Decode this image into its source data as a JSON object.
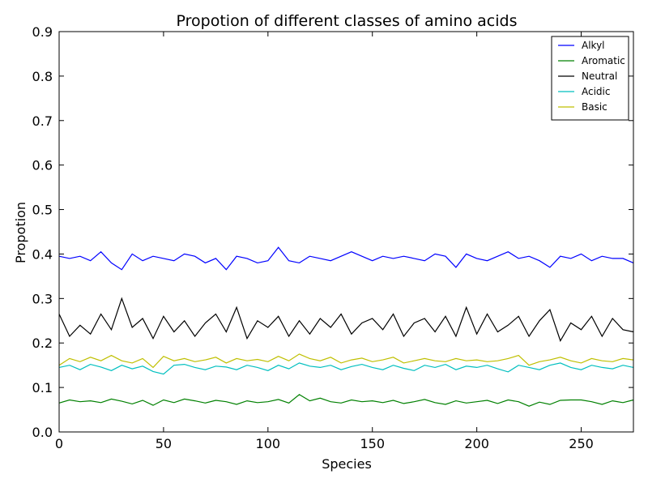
{
  "chart_data": {
    "type": "line",
    "title": "Propotion of different classes of amino acids",
    "xlabel": "Species",
    "ylabel": "Propotion",
    "xlim": [
      0,
      275
    ],
    "ylim": [
      0.0,
      0.9
    ],
    "x_ticks": [
      {
        "value": 0,
        "label": "0"
      },
      {
        "value": 50,
        "label": "50"
      },
      {
        "value": 100,
        "label": "100"
      },
      {
        "value": 150,
        "label": "150"
      },
      {
        "value": 200,
        "label": "200"
      },
      {
        "value": 250,
        "label": "250"
      }
    ],
    "y_ticks": [
      {
        "value": 0.0,
        "label": "0.0"
      },
      {
        "value": 0.1,
        "label": "0.1"
      },
      {
        "value": 0.2,
        "label": "0.2"
      },
      {
        "value": 0.3,
        "label": "0.3"
      },
      {
        "value": 0.4,
        "label": "0.4"
      },
      {
        "value": 0.5,
        "label": "0.5"
      },
      {
        "value": 0.6,
        "label": "0.6"
      },
      {
        "value": 0.7,
        "label": "0.7"
      },
      {
        "value": 0.8,
        "label": "0.8"
      },
      {
        "value": 0.9,
        "label": "0.9"
      }
    ],
    "grid": false,
    "legend_position": "top-right",
    "series": [
      {
        "name": "Alkyl",
        "color": "#0000ff",
        "x": [
          0,
          5,
          10,
          15,
          20,
          25,
          30,
          35,
          40,
          45,
          50,
          55,
          60,
          65,
          70,
          75,
          80,
          85,
          90,
          95,
          100,
          105,
          110,
          115,
          120,
          125,
          130,
          135,
          140,
          145,
          150,
          155,
          160,
          165,
          170,
          175,
          180,
          185,
          190,
          195,
          200,
          205,
          210,
          215,
          220,
          225,
          230,
          235,
          240,
          245,
          250,
          255,
          260,
          265,
          270,
          275
        ],
        "values": [
          0.395,
          0.39,
          0.395,
          0.385,
          0.405,
          0.38,
          0.365,
          0.4,
          0.385,
          0.395,
          0.39,
          0.385,
          0.4,
          0.395,
          0.38,
          0.39,
          0.365,
          0.395,
          0.39,
          0.38,
          0.385,
          0.415,
          0.385,
          0.38,
          0.395,
          0.39,
          0.385,
          0.395,
          0.405,
          0.395,
          0.385,
          0.395,
          0.39,
          0.395,
          0.39,
          0.385,
          0.4,
          0.395,
          0.37,
          0.4,
          0.39,
          0.385,
          0.395,
          0.405,
          0.39,
          0.395,
          0.385,
          0.37,
          0.395,
          0.39,
          0.4,
          0.385,
          0.395,
          0.39,
          0.39,
          0.38
        ]
      },
      {
        "name": "Aromatic",
        "color": "#008000",
        "x": [
          0,
          5,
          10,
          15,
          20,
          25,
          30,
          35,
          40,
          45,
          50,
          55,
          60,
          65,
          70,
          75,
          80,
          85,
          90,
          95,
          100,
          105,
          110,
          115,
          120,
          125,
          130,
          135,
          140,
          145,
          150,
          155,
          160,
          165,
          170,
          175,
          180,
          185,
          190,
          195,
          200,
          205,
          210,
          215,
          220,
          225,
          230,
          235,
          240,
          245,
          250,
          255,
          260,
          265,
          270,
          275
        ],
        "values": [
          0.065,
          0.072,
          0.068,
          0.07,
          0.066,
          0.074,
          0.069,
          0.063,
          0.071,
          0.06,
          0.072,
          0.066,
          0.074,
          0.07,
          0.065,
          0.071,
          0.068,
          0.062,
          0.07,
          0.066,
          0.068,
          0.073,
          0.065,
          0.084,
          0.07,
          0.076,
          0.068,
          0.065,
          0.072,
          0.068,
          0.07,
          0.066,
          0.071,
          0.064,
          0.068,
          0.073,
          0.066,
          0.062,
          0.07,
          0.065,
          0.068,
          0.071,
          0.064,
          0.072,
          0.068,
          0.058,
          0.067,
          0.062,
          0.071,
          0.072,
          0.072,
          0.068,
          0.062,
          0.07,
          0.066,
          0.072
        ]
      },
      {
        "name": "Neutral",
        "color": "#000000",
        "x": [
          0,
          5,
          10,
          15,
          20,
          25,
          30,
          35,
          40,
          45,
          50,
          55,
          60,
          65,
          70,
          75,
          80,
          85,
          90,
          95,
          100,
          105,
          110,
          115,
          120,
          125,
          130,
          135,
          140,
          145,
          150,
          155,
          160,
          165,
          170,
          175,
          180,
          185,
          190,
          195,
          200,
          205,
          210,
          215,
          220,
          225,
          230,
          235,
          240,
          245,
          250,
          255,
          260,
          265,
          270,
          275
        ],
        "values": [
          0.265,
          0.215,
          0.24,
          0.22,
          0.265,
          0.23,
          0.3,
          0.235,
          0.255,
          0.21,
          0.26,
          0.225,
          0.25,
          0.215,
          0.245,
          0.265,
          0.225,
          0.28,
          0.21,
          0.25,
          0.235,
          0.26,
          0.215,
          0.25,
          0.22,
          0.255,
          0.235,
          0.265,
          0.22,
          0.245,
          0.255,
          0.23,
          0.265,
          0.215,
          0.245,
          0.255,
          0.225,
          0.26,
          0.215,
          0.28,
          0.22,
          0.265,
          0.225,
          0.24,
          0.26,
          0.215,
          0.25,
          0.275,
          0.205,
          0.245,
          0.23,
          0.26,
          0.215,
          0.255,
          0.23,
          0.225
        ]
      },
      {
        "name": "Acidic",
        "color": "#00bfbf",
        "x": [
          0,
          5,
          10,
          15,
          20,
          25,
          30,
          35,
          40,
          45,
          50,
          55,
          60,
          65,
          70,
          75,
          80,
          85,
          90,
          95,
          100,
          105,
          110,
          115,
          120,
          125,
          130,
          135,
          140,
          145,
          150,
          155,
          160,
          165,
          170,
          175,
          180,
          185,
          190,
          195,
          200,
          205,
          210,
          215,
          220,
          225,
          230,
          235,
          240,
          245,
          250,
          255,
          260,
          265,
          270,
          275
        ],
        "values": [
          0.145,
          0.15,
          0.14,
          0.152,
          0.146,
          0.138,
          0.15,
          0.142,
          0.148,
          0.136,
          0.13,
          0.15,
          0.152,
          0.145,
          0.14,
          0.148,
          0.146,
          0.14,
          0.15,
          0.145,
          0.138,
          0.15,
          0.142,
          0.155,
          0.148,
          0.145,
          0.15,
          0.14,
          0.147,
          0.152,
          0.145,
          0.14,
          0.15,
          0.143,
          0.138,
          0.15,
          0.145,
          0.152,
          0.14,
          0.148,
          0.145,
          0.15,
          0.142,
          0.135,
          0.15,
          0.145,
          0.14,
          0.15,
          0.155,
          0.145,
          0.14,
          0.15,
          0.145,
          0.142,
          0.15,
          0.145
        ]
      },
      {
        "name": "Basic",
        "color": "#bfbf00",
        "x": [
          0,
          5,
          10,
          15,
          20,
          25,
          30,
          35,
          40,
          45,
          50,
          55,
          60,
          65,
          70,
          75,
          80,
          85,
          90,
          95,
          100,
          105,
          110,
          115,
          120,
          125,
          130,
          135,
          140,
          145,
          150,
          155,
          160,
          165,
          170,
          175,
          180,
          185,
          190,
          195,
          200,
          205,
          210,
          215,
          220,
          225,
          230,
          235,
          240,
          245,
          250,
          255,
          260,
          265,
          270,
          275
        ],
        "values": [
          0.15,
          0.165,
          0.158,
          0.168,
          0.16,
          0.172,
          0.16,
          0.155,
          0.165,
          0.145,
          0.17,
          0.16,
          0.165,
          0.158,
          0.162,
          0.168,
          0.155,
          0.165,
          0.16,
          0.163,
          0.158,
          0.17,
          0.16,
          0.175,
          0.165,
          0.16,
          0.168,
          0.155,
          0.162,
          0.166,
          0.158,
          0.162,
          0.168,
          0.155,
          0.16,
          0.165,
          0.16,
          0.158,
          0.165,
          0.16,
          0.162,
          0.158,
          0.16,
          0.165,
          0.172,
          0.15,
          0.158,
          0.162,
          0.168,
          0.16,
          0.155,
          0.165,
          0.16,
          0.158,
          0.165,
          0.162
        ]
      }
    ]
  }
}
